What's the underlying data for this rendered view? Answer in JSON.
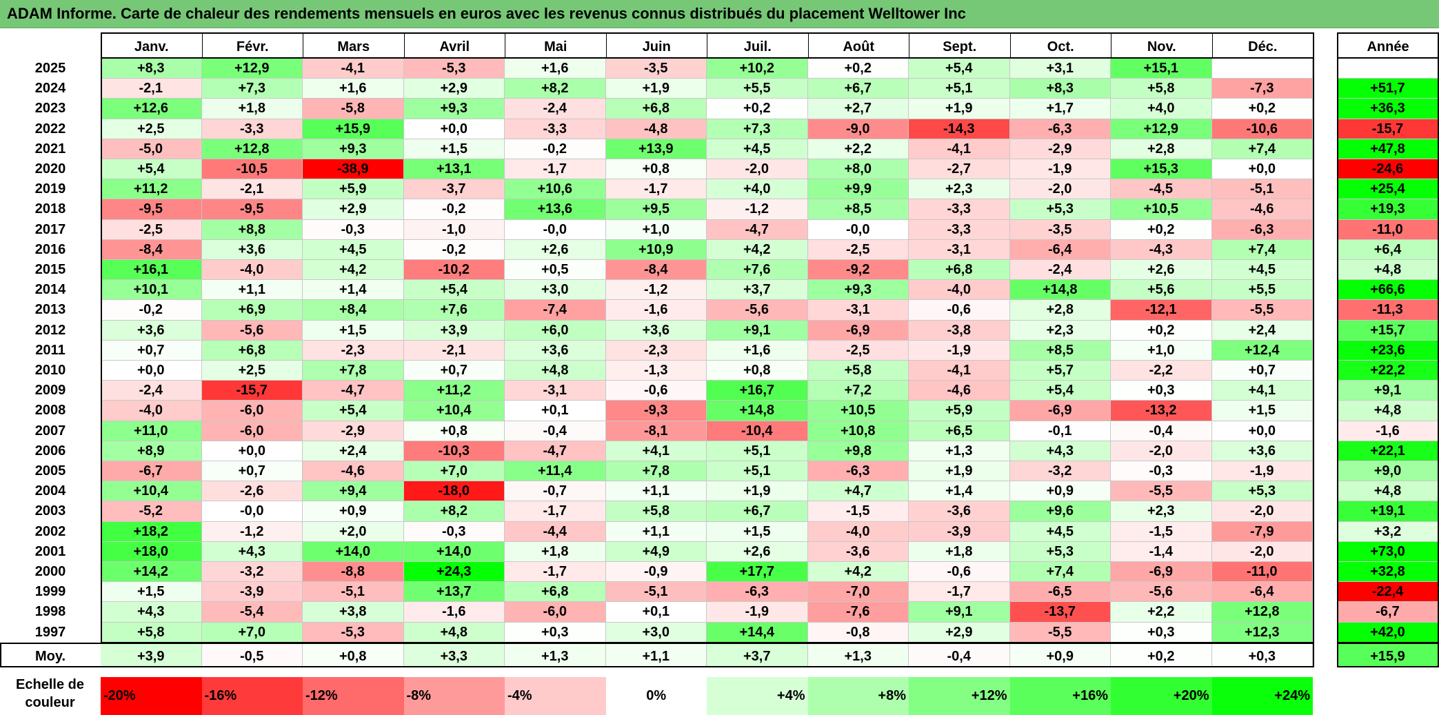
{
  "title": "ADAM Informe. Carte de chaleur des rendements mensuels en euros avec les revenus connus distribués du placement Welltower Inc",
  "chart_data": {
    "type": "heatmap",
    "title": "ADAM Informe. Carte de chaleur des rendements mensuels en euros avec les revenus connus distribués du placement Welltower Inc",
    "columns": [
      "Janv.",
      "Févr.",
      "Mars",
      "Avril",
      "Mai",
      "Juin",
      "Juil.",
      "Août",
      "Sept.",
      "Oct.",
      "Nov.",
      "Déc."
    ],
    "year_column_label": "Année",
    "average_row_label": "Moy.",
    "rows": [
      {
        "year": "2025",
        "values": [
          "+8,3",
          "+12,9",
          "-4,1",
          "-5,3",
          "+1,6",
          "-3,5",
          "+10,2",
          "+0,2",
          "+5,4",
          "+3,1",
          "+15,1",
          ""
        ],
        "annual": ""
      },
      {
        "year": "2024",
        "values": [
          "-2,1",
          "+7,3",
          "+1,6",
          "+2,9",
          "+8,2",
          "+1,9",
          "+5,5",
          "+6,7",
          "+5,1",
          "+8,3",
          "+5,8",
          "-7,3"
        ],
        "annual": "+51,7"
      },
      {
        "year": "2023",
        "values": [
          "+12,6",
          "+1,8",
          "-5,8",
          "+9,3",
          "-2,4",
          "+6,8",
          "+0,2",
          "+2,7",
          "+1,9",
          "+1,7",
          "+4,0",
          "+0,2"
        ],
        "annual": "+36,3"
      },
      {
        "year": "2022",
        "values": [
          "+2,5",
          "-3,3",
          "+15,9",
          "+0,0",
          "-3,3",
          "-4,8",
          "+7,3",
          "-9,0",
          "-14,3",
          "-6,3",
          "+12,9",
          "-10,6"
        ],
        "annual": "-15,7"
      },
      {
        "year": "2021",
        "values": [
          "-5,0",
          "+12,8",
          "+9,3",
          "+1,5",
          "-0,2",
          "+13,9",
          "+4,5",
          "+2,2",
          "-4,1",
          "-2,9",
          "+2,8",
          "+7,4"
        ],
        "annual": "+47,8"
      },
      {
        "year": "2020",
        "values": [
          "+5,4",
          "-10,5",
          "-38,9",
          "+13,1",
          "-1,7",
          "+0,8",
          "-2,0",
          "+8,0",
          "-2,7",
          "-1,9",
          "+15,3",
          "+0,0"
        ],
        "annual": "-24,6"
      },
      {
        "year": "2019",
        "values": [
          "+11,2",
          "-2,1",
          "+5,9",
          "-3,7",
          "+10,6",
          "-1,7",
          "+4,0",
          "+9,9",
          "+2,3",
          "-2,0",
          "-4,5",
          "-5,1"
        ],
        "annual": "+25,4"
      },
      {
        "year": "2018",
        "values": [
          "-9,5",
          "-9,5",
          "+2,9",
          "-0,2",
          "+13,6",
          "+9,5",
          "-1,2",
          "+8,5",
          "-3,3",
          "+5,3",
          "+10,5",
          "-4,6"
        ],
        "annual": "+19,3"
      },
      {
        "year": "2017",
        "values": [
          "-2,5",
          "+8,8",
          "-0,3",
          "-1,0",
          "-0,0",
          "+1,0",
          "-4,7",
          "-0,0",
          "-3,3",
          "-3,5",
          "+0,2",
          "-6,3"
        ],
        "annual": "-11,0"
      },
      {
        "year": "2016",
        "values": [
          "-8,4",
          "+3,6",
          "+4,5",
          "-0,2",
          "+2,6",
          "+10,9",
          "+4,2",
          "-2,5",
          "-3,1",
          "-6,4",
          "-4,3",
          "+7,4"
        ],
        "annual": "+6,4"
      },
      {
        "year": "2015",
        "values": [
          "+16,1",
          "-4,0",
          "+4,2",
          "-10,2",
          "+0,5",
          "-8,4",
          "+7,6",
          "-9,2",
          "+6,8",
          "-2,4",
          "+2,6",
          "+4,5"
        ],
        "annual": "+4,8"
      },
      {
        "year": "2014",
        "values": [
          "+10,1",
          "+1,1",
          "+1,4",
          "+5,4",
          "+3,0",
          "-1,2",
          "+3,7",
          "+9,3",
          "-4,0",
          "+14,8",
          "+5,6",
          "+5,5"
        ],
        "annual": "+66,6"
      },
      {
        "year": "2013",
        "values": [
          "-0,2",
          "+6,9",
          "+8,4",
          "+7,6",
          "-7,4",
          "-1,6",
          "-5,6",
          "-3,1",
          "-0,6",
          "+2,8",
          "-12,1",
          "-5,5"
        ],
        "annual": "-11,3"
      },
      {
        "year": "2012",
        "values": [
          "+3,6",
          "-5,6",
          "+1,5",
          "+3,9",
          "+6,0",
          "+3,6",
          "+9,1",
          "-6,9",
          "-3,8",
          "+2,3",
          "+0,2",
          "+2,4"
        ],
        "annual": "+15,7"
      },
      {
        "year": "2011",
        "values": [
          "+0,7",
          "+6,8",
          "-2,3",
          "-2,1",
          "+3,6",
          "-2,3",
          "+1,6",
          "-2,5",
          "-1,9",
          "+8,5",
          "+1,0",
          "+12,4"
        ],
        "annual": "+23,6"
      },
      {
        "year": "2010",
        "values": [
          "+0,0",
          "+2,5",
          "+7,8",
          "+0,7",
          "+4,8",
          "-1,3",
          "+0,8",
          "+5,8",
          "-4,1",
          "+5,7",
          "-2,2",
          "+0,7"
        ],
        "annual": "+22,2"
      },
      {
        "year": "2009",
        "values": [
          "-2,4",
          "-15,7",
          "-4,7",
          "+11,2",
          "-3,1",
          "-0,6",
          "+16,7",
          "+7,2",
          "-4,6",
          "+5,4",
          "+0,3",
          "+4,1"
        ],
        "annual": "+9,1"
      },
      {
        "year": "2008",
        "values": [
          "-4,0",
          "-6,0",
          "+5,4",
          "+10,4",
          "+0,1",
          "-9,3",
          "+14,8",
          "+10,5",
          "+5,9",
          "-6,9",
          "-13,2",
          "+1,5"
        ],
        "annual": "+4,8"
      },
      {
        "year": "2007",
        "values": [
          "+11,0",
          "-6,0",
          "-2,9",
          "+0,8",
          "-0,4",
          "-8,1",
          "-10,4",
          "+10,8",
          "+6,5",
          "-0,1",
          "-0,4",
          "+0,0"
        ],
        "annual": "-1,6"
      },
      {
        "year": "2006",
        "values": [
          "+8,9",
          "+0,0",
          "+2,4",
          "-10,3",
          "-4,7",
          "+4,1",
          "+5,1",
          "+9,8",
          "+1,3",
          "+4,3",
          "-2,0",
          "+3,6"
        ],
        "annual": "+22,1"
      },
      {
        "year": "2005",
        "values": [
          "-6,7",
          "+0,7",
          "-4,6",
          "+7,0",
          "+11,4",
          "+7,8",
          "+5,1",
          "-6,3",
          "+1,9",
          "-3,2",
          "-0,3",
          "-1,9"
        ],
        "annual": "+9,0"
      },
      {
        "year": "2004",
        "values": [
          "+10,4",
          "-2,6",
          "+9,4",
          "-18,0",
          "-0,7",
          "+1,1",
          "+1,9",
          "+4,7",
          "+1,4",
          "+0,9",
          "-5,5",
          "+5,3"
        ],
        "annual": "+4,8"
      },
      {
        "year": "2003",
        "values": [
          "-5,2",
          "-0,0",
          "+0,9",
          "+8,2",
          "-1,7",
          "+5,8",
          "+6,7",
          "-1,5",
          "-3,6",
          "+9,6",
          "+2,3",
          "-2,0"
        ],
        "annual": "+19,1"
      },
      {
        "year": "2002",
        "values": [
          "+18,2",
          "-1,2",
          "+2,0",
          "-0,3",
          "-4,4",
          "+1,1",
          "+1,5",
          "-4,0",
          "-3,9",
          "+4,5",
          "-1,5",
          "-7,9"
        ],
        "annual": "+3,2"
      },
      {
        "year": "2001",
        "values": [
          "+18,0",
          "+4,3",
          "+14,0",
          "+14,0",
          "+1,8",
          "+4,9",
          "+2,6",
          "-3,6",
          "+1,8",
          "+5,3",
          "-1,4",
          "-2,0"
        ],
        "annual": "+73,0"
      },
      {
        "year": "2000",
        "values": [
          "+14,2",
          "-3,2",
          "-8,8",
          "+24,3",
          "-1,7",
          "-0,9",
          "+17,7",
          "+4,2",
          "-0,6",
          "+7,4",
          "-6,9",
          "-11,0"
        ],
        "annual": "+32,8"
      },
      {
        "year": "1999",
        "values": [
          "+1,5",
          "-3,9",
          "-5,1",
          "+13,7",
          "+6,8",
          "-5,1",
          "-6,3",
          "-7,0",
          "-1,7",
          "-6,5",
          "-5,6",
          "-6,4"
        ],
        "annual": "-22,4"
      },
      {
        "year": "1998",
        "values": [
          "+4,3",
          "-5,4",
          "+3,8",
          "-1,6",
          "-6,0",
          "+0,1",
          "-1,9",
          "-7,6",
          "+9,1",
          "-13,7",
          "+2,2",
          "+12,8"
        ],
        "annual": "-6,7"
      },
      {
        "year": "1997",
        "values": [
          "+5,8",
          "+7,0",
          "-5,3",
          "+4,8",
          "+0,3",
          "+3,0",
          "+14,4",
          "-0,8",
          "+2,9",
          "-5,5",
          "+0,3",
          "+12,3"
        ],
        "annual": "+42,0"
      }
    ],
    "average": {
      "values": [
        "+3,9",
        "-0,5",
        "+0,8",
        "+3,3",
        "+1,3",
        "+1,1",
        "+3,7",
        "+1,3",
        "-0,4",
        "+0,9",
        "+0,2",
        "+0,3"
      ],
      "annual": "+15,9"
    },
    "color_scale": {
      "label": "Echelle de couleur",
      "steps": [
        "-20%",
        "-16%",
        "-12%",
        "-8%",
        "-4%",
        "0%",
        "+4%",
        "+8%",
        "+12%",
        "+16%",
        "+20%",
        "+24%"
      ],
      "colors": [
        "#ff0000",
        "#ff3a3a",
        "#ff6a6a",
        "#ff9a9a",
        "#ffcaca",
        "#ffffff",
        "#d6ffd6",
        "#adffad",
        "#84ff84",
        "#5bff5b",
        "#32ff32",
        "#0aff0a"
      ]
    }
  }
}
